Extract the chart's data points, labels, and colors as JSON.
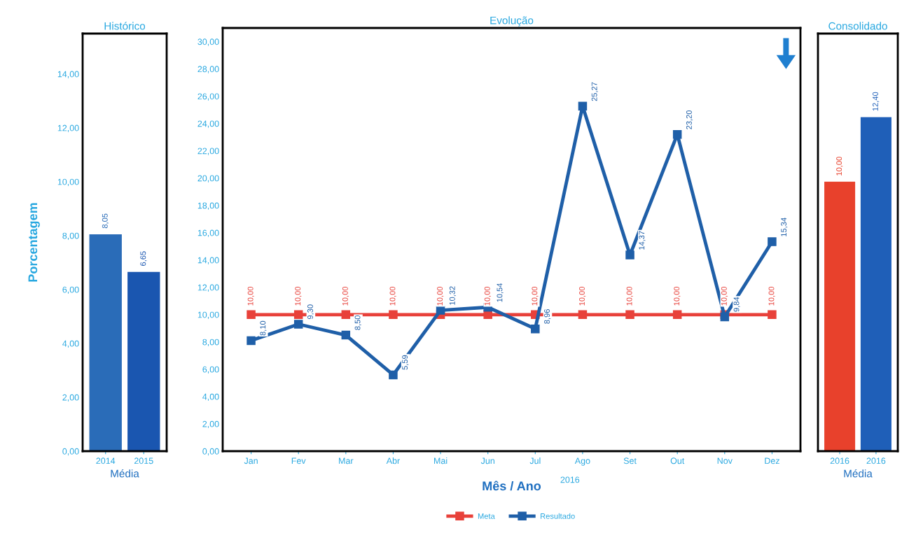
{
  "chart_data": [
    {
      "type": "bar",
      "title": "Histórico",
      "xlabel": "Média",
      "ylabel": "Porcentagem",
      "categories": [
        "2014",
        "2015"
      ],
      "values": [
        8.05,
        6.65
      ],
      "colors": [
        "#2a6cb8",
        "#1a56b0"
      ],
      "value_labels": [
        "8,05",
        "6,65"
      ],
      "ylim": [
        0,
        15.5
      ],
      "yticks": [
        {
          "value": 0,
          "label": "0,00"
        },
        {
          "value": 2,
          "label": "2,00"
        },
        {
          "value": 4,
          "label": "4,00"
        },
        {
          "value": 6,
          "label": "6,00"
        },
        {
          "value": 8,
          "label": "8,00"
        },
        {
          "value": 10,
          "label": "10,00"
        },
        {
          "value": 12,
          "label": "12,00"
        },
        {
          "value": 14,
          "label": "14,00"
        }
      ]
    },
    {
      "type": "line",
      "title": "Evolução",
      "xlabel": "Mês / Ano",
      "annotations": [
        "2016"
      ],
      "categories": [
        "Jan",
        "Fev",
        "Mar",
        "Abr",
        "Mai",
        "Jun",
        "Jul",
        "Ago",
        "Set",
        "Out",
        "Nov",
        "Dez"
      ],
      "marker": "square",
      "legend": "bottom",
      "ylim": [
        0,
        31
      ],
      "yticks": [
        {
          "value": 0,
          "label": "0,00"
        },
        {
          "value": 2,
          "label": "2,00"
        },
        {
          "value": 4,
          "label": "4,00"
        },
        {
          "value": 6,
          "label": "6,00"
        },
        {
          "value": 8,
          "label": "8,00"
        },
        {
          "value": 10,
          "label": "10,00"
        },
        {
          "value": 12,
          "label": "12,00"
        },
        {
          "value": 14,
          "label": "14,00"
        },
        {
          "value": 16,
          "label": "16,00"
        },
        {
          "value": 18,
          "label": "18,00"
        },
        {
          "value": 20,
          "label": "20,00"
        },
        {
          "value": 22,
          "label": "22,00"
        },
        {
          "value": 24,
          "label": "24,00"
        },
        {
          "value": 26,
          "label": "26,00"
        },
        {
          "value": 28,
          "label": "28,00"
        },
        {
          "value": 30,
          "label": "30,00"
        }
      ],
      "series": [
        {
          "name": "Meta",
          "color": "#e8413a",
          "values": [
            10,
            10,
            10,
            10,
            10,
            10,
            10,
            10,
            10,
            10,
            10,
            10
          ],
          "value_labels": [
            "10,00",
            "10,00",
            "10,00",
            "10,00",
            "10,00",
            "10,00",
            "10,00",
            "10,00",
            "10,00",
            "10,00",
            "10,00",
            "10,00"
          ]
        },
        {
          "name": "Resultado",
          "color": "#1f5fa8",
          "values": [
            8.1,
            9.3,
            8.5,
            5.59,
            10.32,
            10.54,
            8.96,
            25.27,
            14.37,
            23.2,
            9.84,
            15.34
          ],
          "value_labels": [
            "8,10",
            "9,30",
            "8,50",
            "5,59",
            "10,32",
            "10,54",
            "8,96",
            "25,27",
            "14,37",
            "23,20",
            "9,84",
            "15,34"
          ]
        }
      ]
    },
    {
      "type": "bar",
      "title": "Consolidado",
      "xlabel": "Média",
      "categories": [
        "2016",
        "2016"
      ],
      "values": [
        10.0,
        12.4
      ],
      "colors": [
        "#e8412c",
        "#1f5fb8"
      ],
      "value_labels": [
        "10,00",
        "12,40"
      ],
      "ylim": [
        0,
        15.5
      ],
      "tick_labels": "x"
    }
  ]
}
